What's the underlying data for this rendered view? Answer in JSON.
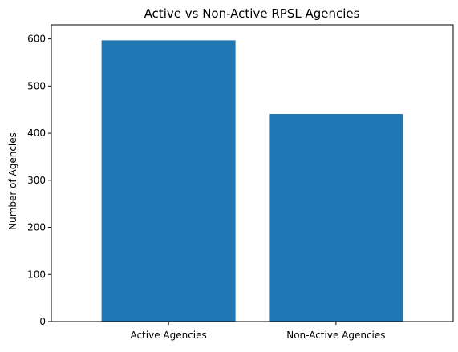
{
  "chart_data": {
    "type": "bar",
    "title": "Active vs Non-Active RPSL Agencies",
    "xlabel": "",
    "ylabel": "Number of Agencies",
    "categories": [
      "Active Agencies",
      "Non-Active Agencies"
    ],
    "values": [
      597,
      441
    ],
    "ylim": [
      0,
      630
    ],
    "yticks": [
      0,
      100,
      200,
      300,
      400,
      500,
      600
    ],
    "grid": false,
    "legend": "none",
    "bar_color": "#1f77b4"
  }
}
